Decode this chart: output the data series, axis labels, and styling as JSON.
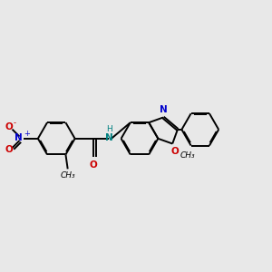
{
  "bg_color": "#e8e8e8",
  "bond_color": "#000000",
  "N_color": "#0000cc",
  "O_color": "#cc0000",
  "NH_color": "#008080",
  "lw": 1.4,
  "dbo": 0.018,
  "figsize": [
    3.0,
    3.0
  ],
  "dpi": 100,
  "xlim": [
    -3.0,
    2.2
  ],
  "ylim": [
    -1.0,
    1.2
  ]
}
